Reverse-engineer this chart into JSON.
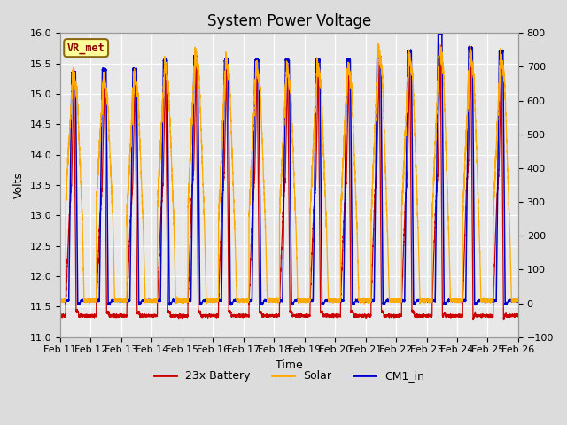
{
  "title": "System Power Voltage",
  "xlabel": "Time",
  "ylabel": "Volts",
  "annotation": "VR_met",
  "ylim_left": [
    11.0,
    16.0
  ],
  "ylim_right": [
    -100,
    800
  ],
  "x_tick_labels": [
    "Feb 11",
    "Feb 12",
    "Feb 13",
    "Feb 14",
    "Feb 15",
    "Feb 16",
    "Feb 17",
    "Feb 18",
    "Feb 19",
    "Feb 20",
    "Feb 21",
    "Feb 22",
    "Feb 23",
    "Feb 24",
    "Feb 25",
    "Feb 26"
  ],
  "legend_labels": [
    "23x Battery",
    "Solar",
    "CM1_in"
  ],
  "legend_colors": [
    "#cc0000",
    "#ffaa00",
    "#0000cc"
  ],
  "bg_color": "#e8e8e8",
  "grid_color": "#ffffff",
  "n_days": 15,
  "pts_per_day": 500,
  "battery_night_low": 11.35,
  "battery_base": 11.6,
  "battery_day_mid": [
    13.5,
    13.45,
    13.45,
    13.55,
    13.75,
    13.7,
    13.65,
    13.6,
    13.55,
    13.55,
    13.8,
    13.7,
    13.7,
    13.9,
    13.75
  ],
  "battery_charge_peak": [
    15.4,
    15.3,
    15.35,
    15.5,
    15.55,
    15.55,
    15.5,
    15.5,
    15.5,
    15.5,
    15.55,
    15.65,
    15.8,
    15.65,
    15.65
  ],
  "battery_post_drop": [
    11.45,
    11.4,
    11.4,
    11.42,
    11.42,
    11.42,
    11.42,
    11.42,
    11.42,
    11.42,
    11.42,
    11.42,
    11.35,
    11.3,
    11.3
  ],
  "solar_peak": [
    15.4,
    15.3,
    15.35,
    15.5,
    15.7,
    15.6,
    15.5,
    15.45,
    15.5,
    15.5,
    15.75,
    15.65,
    15.8,
    15.7,
    15.65
  ],
  "solar_morning_start": [
    13.2,
    13.2,
    13.0,
    13.1,
    13.1,
    12.9,
    13.0,
    13.0,
    13.0,
    13.0,
    12.9,
    13.0,
    13.0,
    13.0,
    13.0
  ],
  "cm1_peak": [
    15.35,
    15.4,
    15.4,
    15.55,
    15.6,
    15.55,
    15.55,
    15.55,
    15.55,
    15.55,
    15.6,
    15.7,
    16.0,
    15.75,
    15.7
  ],
  "cm1_base": 11.6
}
